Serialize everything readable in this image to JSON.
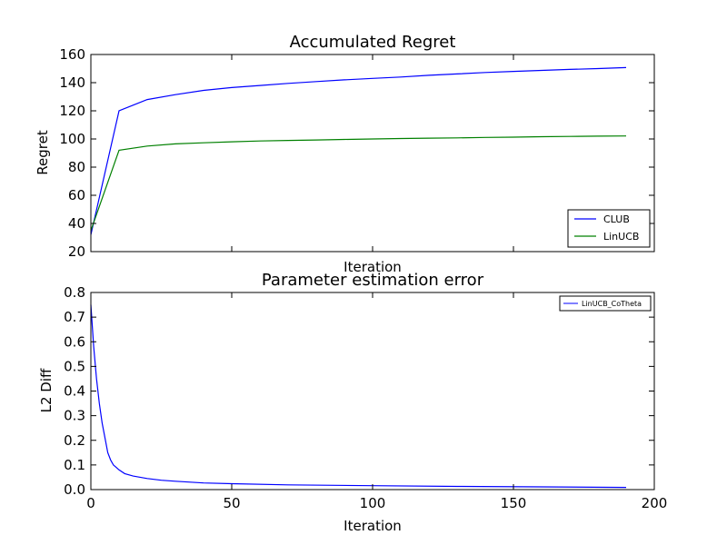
{
  "chart_data": [
    {
      "type": "line",
      "title": "Accumulated Regret",
      "xlabel": "Iteration",
      "ylabel": "Regret",
      "xlim": [
        0,
        200
      ],
      "ylim": [
        20,
        160
      ],
      "yticks": [
        20,
        40,
        60,
        80,
        100,
        120,
        140,
        160
      ],
      "ytick_labels": [
        "20",
        "40",
        "60",
        "80",
        "100",
        "120",
        "140",
        "160"
      ],
      "show_x_tick_labels": false,
      "grid": false,
      "legend_position": "lower-right",
      "series": [
        {
          "name": "CLUB",
          "color": "#0000ff",
          "x": [
            0,
            10,
            20,
            30,
            40,
            50,
            60,
            70,
            80,
            90,
            100,
            110,
            120,
            130,
            140,
            150,
            160,
            170,
            180,
            190
          ],
          "y": [
            32,
            120,
            128,
            131.5,
            134.5,
            136.5,
            138,
            139.5,
            140.8,
            142,
            143,
            144,
            145.2,
            146.2,
            147.2,
            148,
            148.7,
            149.4,
            150,
            150.7
          ]
        },
        {
          "name": "LinUCB",
          "color": "#008000",
          "x": [
            0,
            10,
            20,
            30,
            40,
            50,
            60,
            70,
            80,
            90,
            100,
            110,
            120,
            130,
            140,
            150,
            160,
            170,
            180,
            190
          ],
          "y": [
            35,
            92,
            95,
            96.5,
            97.3,
            98,
            98.6,
            99,
            99.3,
            99.7,
            100,
            100.3,
            100.6,
            100.8,
            101.1,
            101.3,
            101.6,
            101.8,
            102,
            102.1
          ]
        }
      ]
    },
    {
      "type": "line",
      "title": "Parameter estimation error",
      "xlabel": "Iteration",
      "ylabel": "L2 Diff",
      "xlim": [
        0,
        200
      ],
      "ylim": [
        0.0,
        0.8
      ],
      "xticks": [
        0,
        50,
        100,
        150,
        200
      ],
      "xtick_labels": [
        "0",
        "50",
        "100",
        "150",
        "200"
      ],
      "yticks": [
        0.0,
        0.1,
        0.2,
        0.3,
        0.4,
        0.5,
        0.6,
        0.7,
        0.8
      ],
      "ytick_labels": [
        "0.0",
        "0.1",
        "0.2",
        "0.3",
        "0.4",
        "0.5",
        "0.6",
        "0.7",
        "0.8"
      ],
      "grid": false,
      "legend_position": "upper-right",
      "series": [
        {
          "name": "LinUCB_CoTheta",
          "color": "#0000ff",
          "x": [
            0,
            1,
            2,
            3,
            4,
            5,
            6,
            7,
            8,
            9,
            10,
            12,
            15,
            20,
            25,
            30,
            40,
            50,
            70,
            100,
            130,
            160,
            190
          ],
          "y": [
            0.75,
            0.58,
            0.45,
            0.35,
            0.27,
            0.21,
            0.15,
            0.12,
            0.1,
            0.09,
            0.08,
            0.065,
            0.055,
            0.045,
            0.038,
            0.034,
            0.027,
            0.024,
            0.019,
            0.016,
            0.013,
            0.011,
            0.009
          ]
        }
      ]
    }
  ]
}
